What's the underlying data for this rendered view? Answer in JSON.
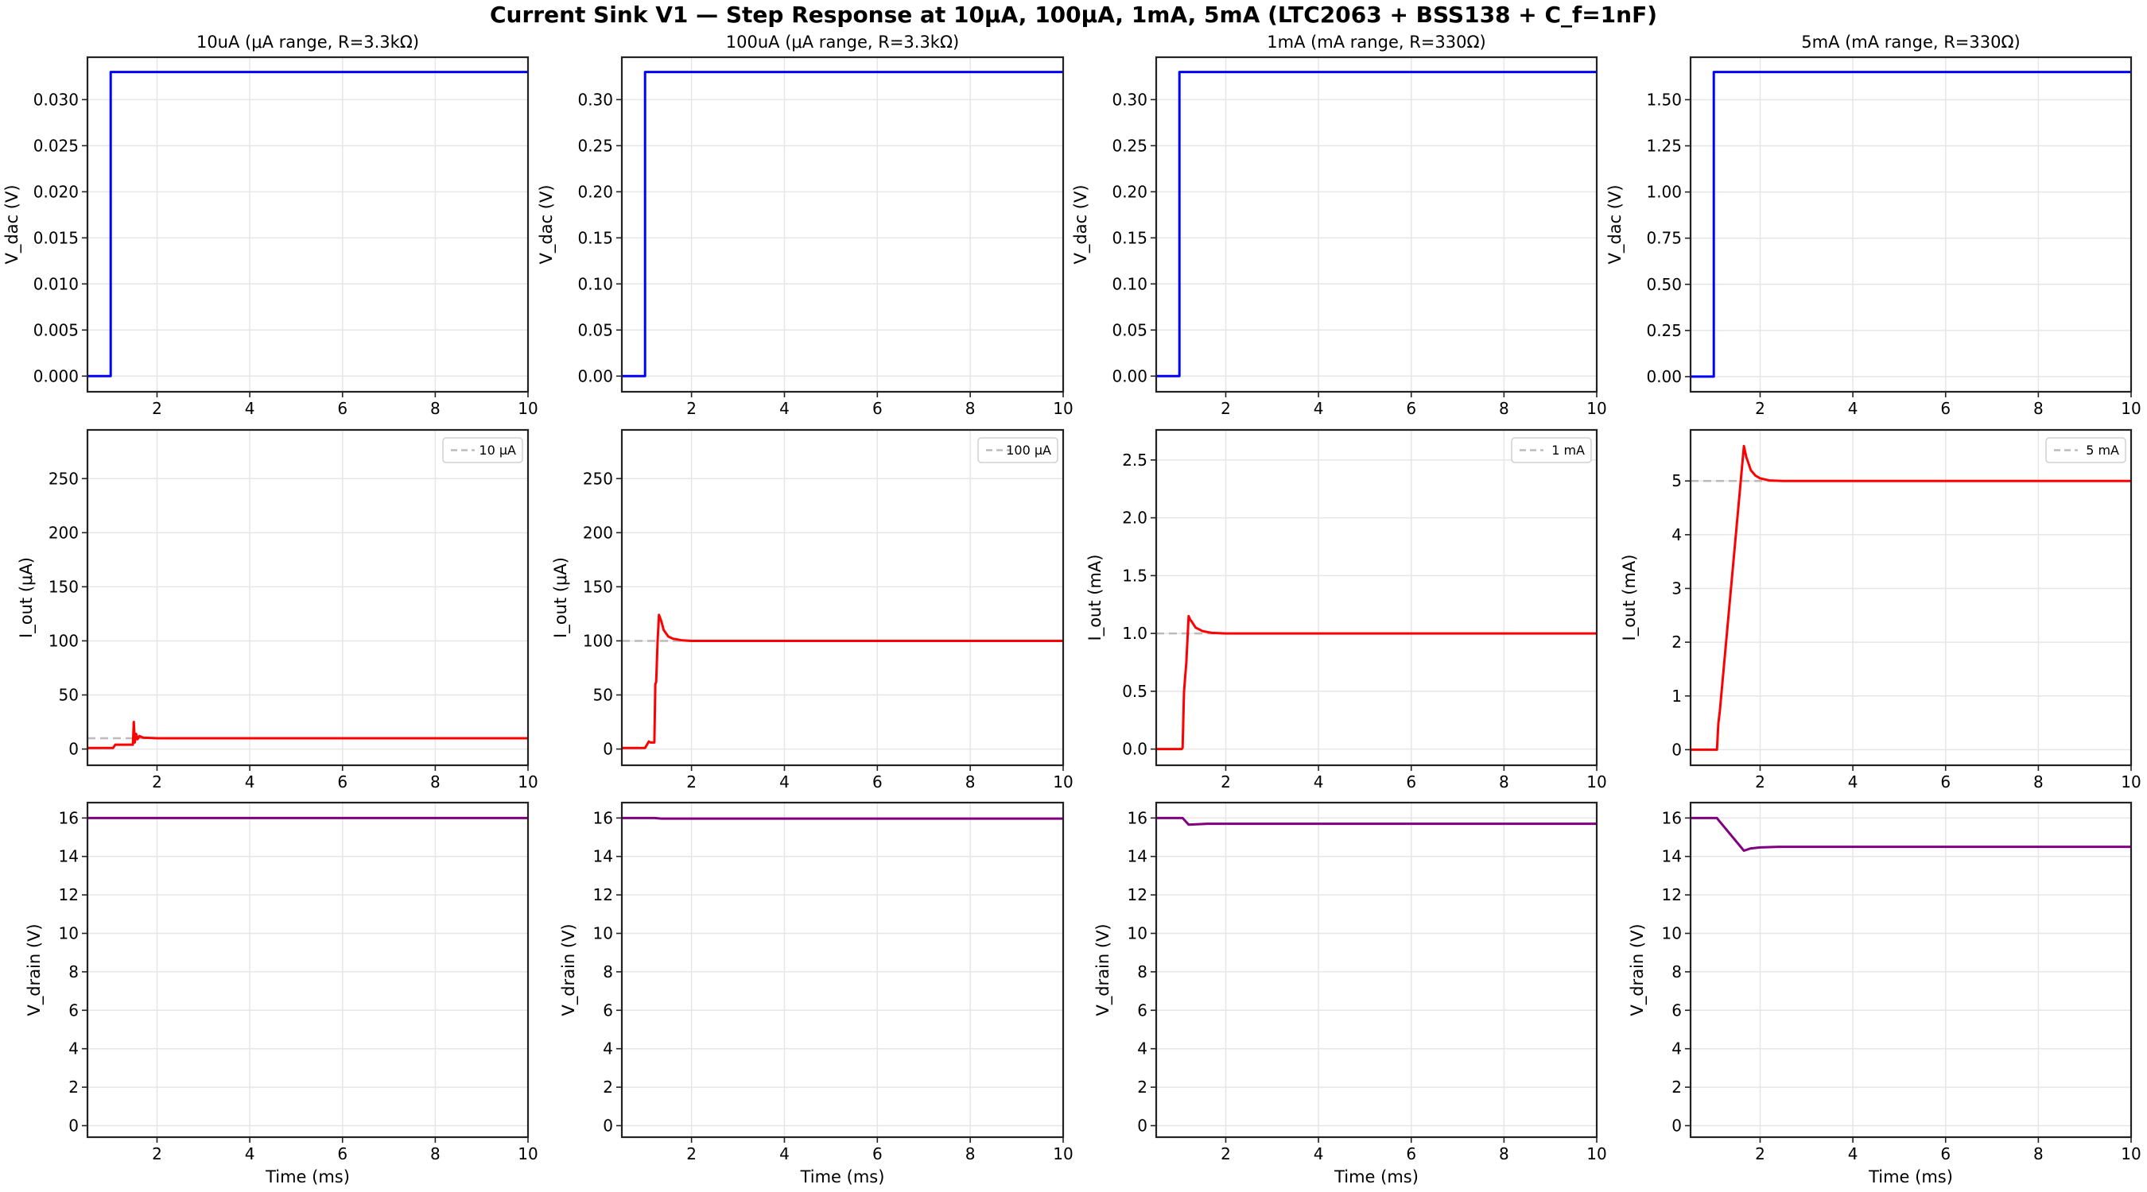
{
  "figure": {
    "suptitle": "Current Sink V1 — Step Response at 10μA, 100μA, 1mA, 5mA (LTC2063 + BSS138 + C_f=1nF)",
    "xlabel": "Time (ms)",
    "colors": {
      "v_dac": "#0000ff",
      "i_out": "#ff0000",
      "v_drain": "#800080",
      "ref": "#bbbbbb",
      "grid": "#e6e6e6",
      "axes": "#222222"
    }
  },
  "chart_data": [
    {
      "type": "line",
      "title": "10uA (μA range, R=3.3kΩ)",
      "panels": [
        {
          "ylabel": "V_dac (V)",
          "ylim": [
            -0.0017,
            0.0346
          ],
          "yticks": [
            "0.000",
            "0.005",
            "0.010",
            "0.015",
            "0.020",
            "0.025",
            "0.030"
          ],
          "ytick_values": [
            0,
            0.005,
            0.01,
            0.015,
            0.02,
            0.025,
            0.03
          ],
          "series": [
            {
              "name": "V_dac",
              "color": "v_dac",
              "x": [
                0.5,
                1.0,
                1.0,
                10
              ],
              "y": [
                0,
                0,
                0.033,
                0.033
              ]
            }
          ]
        },
        {
          "ylabel": "I_out (μA)",
          "ylim": [
            -15,
            295
          ],
          "yticks": [
            "0",
            "50",
            "100",
            "150",
            "200",
            "250"
          ],
          "ytick_values": [
            0,
            50,
            100,
            150,
            200,
            250
          ],
          "legend": "10 μA",
          "ref": 10,
          "series": [
            {
              "name": "I_out",
              "color": "i_out",
              "x": [
                0.5,
                1.05,
                1.1,
                1.48,
                1.5,
                1.52,
                1.55,
                1.58,
                1.62,
                1.7,
                2.0,
                10
              ],
              "y": [
                1,
                1,
                4,
                4,
                25,
                6,
                14,
                9,
                12,
                10.5,
                10,
                10
              ]
            }
          ]
        },
        {
          "ylabel": "V_drain (V)",
          "ylim": [
            -0.6,
            16.8
          ],
          "yticks": [
            "0",
            "2",
            "4",
            "6",
            "8",
            "10",
            "12",
            "14",
            "16"
          ],
          "ytick_values": [
            0,
            2,
            4,
            6,
            8,
            10,
            12,
            14,
            16
          ],
          "series": [
            {
              "name": "V_drain",
              "color": "v_drain",
              "x": [
                0.5,
                10
              ],
              "y": [
                16,
                16
              ]
            }
          ]
        }
      ]
    },
    {
      "type": "line",
      "title": "100uA (μA range, R=3.3kΩ)",
      "panels": [
        {
          "ylabel": "V_dac (V)",
          "ylim": [
            -0.017,
            0.346
          ],
          "yticks": [
            "0.00",
            "0.05",
            "0.10",
            "0.15",
            "0.20",
            "0.25",
            "0.30"
          ],
          "ytick_values": [
            0,
            0.05,
            0.1,
            0.15,
            0.2,
            0.25,
            0.3
          ],
          "series": [
            {
              "name": "V_dac",
              "color": "v_dac",
              "x": [
                0.5,
                1.0,
                1.0,
                10
              ],
              "y": [
                0,
                0,
                0.33,
                0.33
              ]
            }
          ]
        },
        {
          "ylabel": "I_out (μA)",
          "ylim": [
            -15,
            295
          ],
          "yticks": [
            "0",
            "50",
            "100",
            "150",
            "200",
            "250"
          ],
          "ytick_values": [
            0,
            50,
            100,
            150,
            200,
            250
          ],
          "legend": "100 μA",
          "ref": 100,
          "series": [
            {
              "name": "I_out",
              "color": "i_out",
              "x": [
                0.5,
                1.0,
                1.08,
                1.12,
                1.2,
                1.22,
                1.24,
                1.27,
                1.3,
                1.35,
                1.4,
                1.5,
                1.6,
                1.8,
                2.0,
                2.3,
                10
              ],
              "y": [
                1,
                1,
                7,
                6,
                6,
                60,
                62,
                100,
                124,
                118,
                110,
                104,
                102,
                100.5,
                100,
                100,
                100
              ]
            }
          ]
        },
        {
          "ylabel": "V_drain (V)",
          "ylim": [
            -0.6,
            16.8
          ],
          "yticks": [
            "0",
            "2",
            "4",
            "6",
            "8",
            "10",
            "12",
            "14",
            "16"
          ],
          "ytick_values": [
            0,
            2,
            4,
            6,
            8,
            10,
            12,
            14,
            16
          ],
          "series": [
            {
              "name": "V_drain",
              "color": "v_drain",
              "x": [
                0.5,
                1.2,
                1.35,
                10
              ],
              "y": [
                16,
                16,
                15.97,
                15.97
              ]
            }
          ]
        }
      ]
    },
    {
      "type": "line",
      "title": "1mA (mA range, R=330Ω)",
      "panels": [
        {
          "ylabel": "V_dac (V)",
          "ylim": [
            -0.017,
            0.346
          ],
          "yticks": [
            "0.00",
            "0.05",
            "0.10",
            "0.15",
            "0.20",
            "0.25",
            "0.30"
          ],
          "ytick_values": [
            0,
            0.05,
            0.1,
            0.15,
            0.2,
            0.25,
            0.3
          ],
          "series": [
            {
              "name": "V_dac",
              "color": "v_dac",
              "x": [
                0.5,
                1.0,
                1.0,
                10
              ],
              "y": [
                0,
                0,
                0.33,
                0.33
              ]
            }
          ]
        },
        {
          "ylabel": "I_out (mA)",
          "ylim": [
            -0.14,
            2.76
          ],
          "yticks": [
            "0.0",
            "0.5",
            "1.0",
            "1.5",
            "2.0",
            "2.5"
          ],
          "ytick_values": [
            0,
            0.5,
            1,
            1.5,
            2,
            2.5
          ],
          "legend": "1 mA",
          "ref": 1.0,
          "series": [
            {
              "name": "I_out",
              "color": "i_out",
              "x": [
                0.5,
                1.05,
                1.07,
                1.1,
                1.15,
                1.2,
                1.23,
                1.27,
                1.35,
                1.5,
                1.7,
                2.0,
                10
              ],
              "y": [
                0,
                0,
                0.01,
                0.5,
                0.75,
                1.15,
                1.12,
                1.1,
                1.05,
                1.02,
                1.005,
                1.0,
                1.0
              ]
            }
          ]
        },
        {
          "ylabel": "V_drain (V)",
          "ylim": [
            -0.6,
            16.8
          ],
          "yticks": [
            "0",
            "2",
            "4",
            "6",
            "8",
            "10",
            "12",
            "14",
            "16"
          ],
          "ytick_values": [
            0,
            2,
            4,
            6,
            8,
            10,
            12,
            14,
            16
          ],
          "series": [
            {
              "name": "V_drain",
              "color": "v_drain",
              "x": [
                0.5,
                1.07,
                1.2,
                1.6,
                10
              ],
              "y": [
                16,
                16,
                15.65,
                15.7,
                15.7
              ]
            }
          ]
        }
      ]
    },
    {
      "type": "line",
      "title": "5mA (mA range, R=330Ω)",
      "panels": [
        {
          "ylabel": "V_dac (V)",
          "ylim": [
            -0.082,
            1.73
          ],
          "yticks": [
            "0.00",
            "0.25",
            "0.50",
            "0.75",
            "1.00",
            "1.25",
            "1.50"
          ],
          "ytick_values": [
            0,
            0.25,
            0.5,
            0.75,
            1,
            1.25,
            1.5
          ],
          "series": [
            {
              "name": "V_dac",
              "color": "v_dac",
              "x": [
                0.5,
                1.0,
                1.0,
                10
              ],
              "y": [
                0,
                0,
                1.65,
                1.65
              ]
            }
          ]
        },
        {
          "ylabel": "I_out (mA)",
          "ylim": [
            -0.29,
            5.95
          ],
          "yticks": [
            "0",
            "1",
            "2",
            "3",
            "4",
            "5"
          ],
          "ytick_values": [
            0,
            1,
            2,
            3,
            4,
            5
          ],
          "legend": "5 mA",
          "ref": 5.0,
          "series": [
            {
              "name": "I_out",
              "color": "i_out",
              "x": [
                0.5,
                1.07,
                1.1,
                1.13,
                1.65,
                1.7,
                1.8,
                1.9,
                2.0,
                2.2,
                2.5,
                10
              ],
              "y": [
                0,
                0,
                0.5,
                0.7,
                5.65,
                5.45,
                5.2,
                5.1,
                5.05,
                5.01,
                5.0,
                5.0
              ]
            }
          ]
        },
        {
          "ylabel": "V_drain (V)",
          "ylim": [
            -0.6,
            16.8
          ],
          "yticks": [
            "0",
            "2",
            "4",
            "6",
            "8",
            "10",
            "12",
            "14",
            "16"
          ],
          "ytick_values": [
            0,
            2,
            4,
            6,
            8,
            10,
            12,
            14,
            16
          ],
          "series": [
            {
              "name": "V_drain",
              "color": "v_drain",
              "x": [
                0.5,
                1.07,
                1.1,
                1.65,
                1.8,
                2.0,
                2.4,
                10
              ],
              "y": [
                16,
                16,
                15.9,
                14.3,
                14.42,
                14.47,
                14.5,
                14.5
              ]
            }
          ]
        }
      ]
    }
  ],
  "axes": {
    "xlim": [
      0.5,
      10
    ],
    "xticks": [
      "2",
      "4",
      "6",
      "8",
      "10"
    ],
    "xtick_values": [
      2,
      4,
      6,
      8,
      10
    ]
  }
}
